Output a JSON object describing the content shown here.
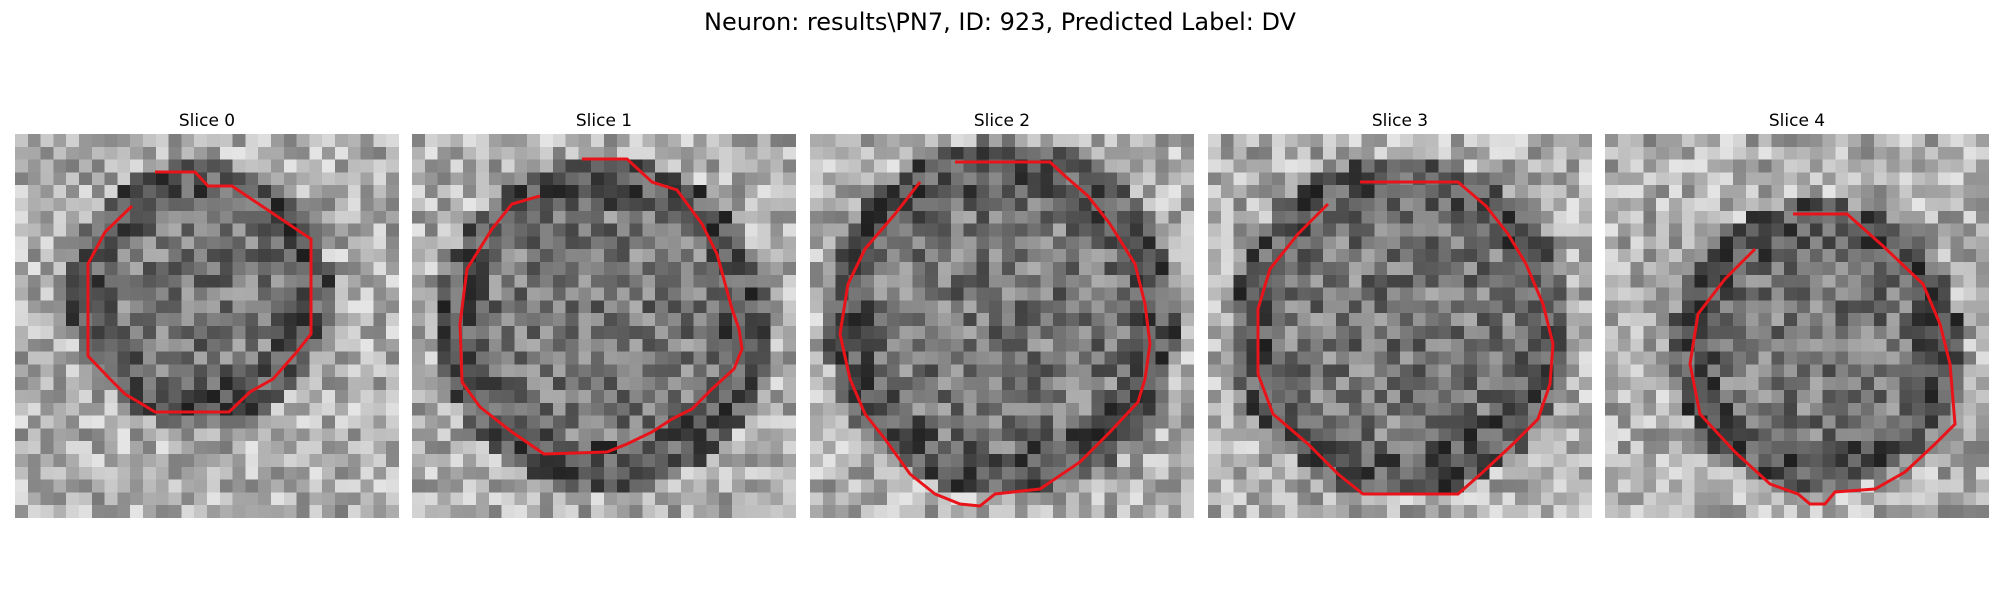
{
  "figure": {
    "title": "Neuron: results\\PN7, ID: 923, Predicted Label: DV"
  },
  "colors": {
    "contour": "#e8141a",
    "background": "#ffffff"
  },
  "panels": [
    {
      "title": "Slice 0"
    },
    {
      "title": "Slice 1"
    },
    {
      "title": "Slice 2"
    },
    {
      "title": "Slice 3"
    },
    {
      "title": "Slice 4"
    }
  ]
}
